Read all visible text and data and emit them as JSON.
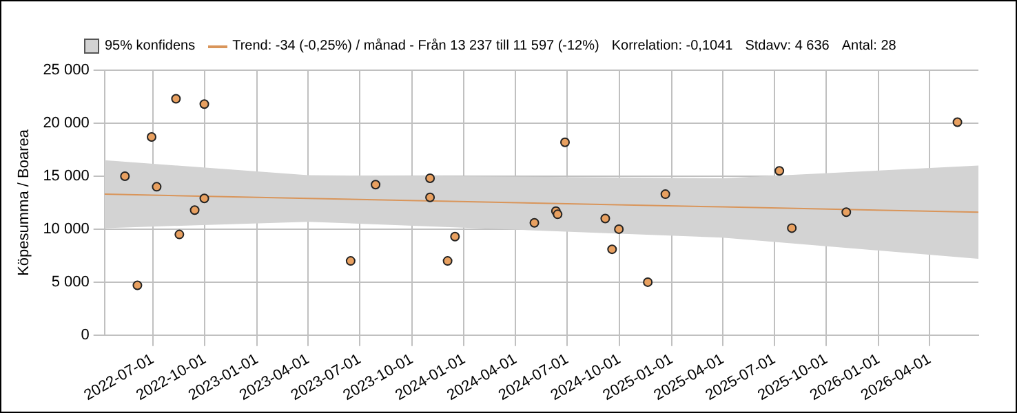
{
  "chart_data": {
    "type": "scatter",
    "ylabel": "Köpesumma / Boarea",
    "annotations": [
      "95% konfidens",
      "Korrelation: -0,1041",
      "Stdavv: 4 636",
      "Antal: 28"
    ],
    "series": [
      {
        "color": "#e8a060",
        "x": [
          "2022-05-13",
          "2022-06-04",
          "2022-06-29",
          "2022-07-08",
          "2022-08-11",
          "2022-08-17",
          "2022-09-13",
          "2022-09-30",
          "2022-09-30",
          "2023-06-15",
          "2023-07-29",
          "2023-11-02",
          "2023-11-02",
          "2023-12-03",
          "2023-12-16",
          "2024-05-04",
          "2024-06-11",
          "2024-06-14",
          "2024-06-27",
          "2024-09-06",
          "2024-09-18",
          "2024-09-30",
          "2024-11-20",
          "2024-12-21",
          "2025-07-10",
          "2025-08-01",
          "2025-11-05",
          "2026-05-20"
        ],
        "values": [
          15000,
          4700,
          18700,
          14000,
          22300,
          9500,
          11800,
          21800,
          12900,
          7000,
          14200,
          14800,
          13000,
          7000,
          9300,
          10600,
          11700,
          11400,
          18200,
          11000,
          8100,
          10000,
          5000,
          13300,
          15500,
          10100,
          11600,
          20100
        ]
      },
      {
        "type": "line",
        "marker": "none",
        "name": "Trend: -34 (-0,25%) / månad  -  Från 13 237 till 11 597 (-12%)",
        "color": "#d9955a",
        "x": [
          "2022-04-07",
          "2023-04-01",
          "2025-04-01",
          "2026-06-26"
        ],
        "values": [
          13300,
          12900,
          12100,
          11600
        ],
        "lower": [
          10100,
          10700,
          9200,
          7200
        ],
        "upper": [
          16500,
          15100,
          14800,
          16000
        ]
      }
    ],
    "xlim": [
      "2022-04-07",
      "2026-06-26"
    ],
    "xticks": [
      "2022-07-01",
      "2022-10-01",
      "2023-01-01",
      "2023-04-01",
      "2023-07-01",
      "2023-10-01",
      "2024-01-01",
      "2024-04-01",
      "2024-07-01",
      "2024-10-01",
      "2025-01-01",
      "2025-04-01",
      "2025-07-01",
      "2025-10-01",
      "2026-01-01",
      "2026-04-01"
    ],
    "ylim": [
      0,
      25000
    ],
    "yticks": [
      0,
      {
        "value": 5000,
        "label": "5 000"
      },
      {
        "value": 10000,
        "label": "10 000"
      },
      {
        "value": 15000,
        "label": "15 000"
      },
      {
        "value": 20000,
        "label": "20 000"
      },
      {
        "value": 25000,
        "label": "25 000"
      }
    ],
    "grid": true,
    "legend": "top",
    "marker": "circle",
    "line_style": "solid"
  }
}
